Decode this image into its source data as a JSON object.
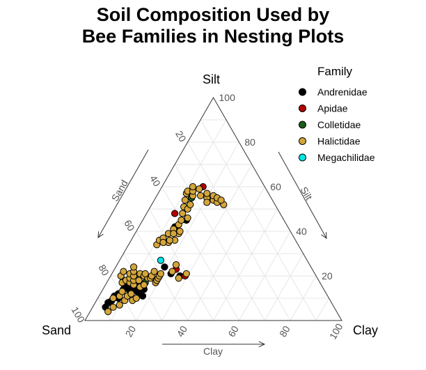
{
  "chart_data": {
    "type": "scatter",
    "subtype": "ternary",
    "title_lines": [
      "Soil Composition Used by",
      "Bee Families in Nesting Plots"
    ],
    "axes": {
      "corner_labels": {
        "left": "Sand",
        "top": "Silt",
        "right": "Clay"
      },
      "arrow_labels": {
        "left": "Sand",
        "right": "Silt",
        "bottom": "Clay"
      },
      "ticks": [
        "20",
        "40",
        "60",
        "80",
        "100"
      ],
      "range": [
        0,
        100
      ]
    },
    "legend": {
      "title": "Family",
      "position": "top-right",
      "entries": [
        {
          "name": "Andrenidae",
          "color": "#000000"
        },
        {
          "name": "Apidae",
          "color": "#b30000"
        },
        {
          "name": "Colletidae",
          "color": "#1a5c1a"
        },
        {
          "name": "Halictidae",
          "color": "#d4a63a"
        },
        {
          "name": "Megachilidae",
          "color": "#00e5e5"
        }
      ]
    },
    "grid": true,
    "series": [
      {
        "name": "Andrenidae",
        "color": "#000000",
        "points": [
          {
            "sand": 89,
            "silt": 6,
            "clay": 5
          },
          {
            "sand": 87,
            "silt": 8,
            "clay": 5
          },
          {
            "sand": 85,
            "silt": 9,
            "clay": 6
          },
          {
            "sand": 83,
            "silt": 11,
            "clay": 6
          },
          {
            "sand": 81,
            "silt": 12,
            "clay": 7
          },
          {
            "sand": 78,
            "silt": 14,
            "clay": 8
          },
          {
            "sand": 77,
            "silt": 15,
            "clay": 8
          },
          {
            "sand": 76,
            "silt": 14,
            "clay": 10
          },
          {
            "sand": 75,
            "silt": 16,
            "clay": 9
          },
          {
            "sand": 74,
            "silt": 14,
            "clay": 12
          },
          {
            "sand": 73,
            "silt": 13,
            "clay": 14
          },
          {
            "sand": 72,
            "silt": 15,
            "clay": 13
          },
          {
            "sand": 71,
            "silt": 17,
            "clay": 12
          },
          {
            "sand": 73,
            "silt": 12,
            "clay": 15
          },
          {
            "sand": 70,
            "silt": 14,
            "clay": 16
          },
          {
            "sand": 72,
            "silt": 11,
            "clay": 17
          },
          {
            "sand": 57,
            "silt": 24,
            "clay": 19
          },
          {
            "sand": 56,
            "silt": 21,
            "clay": 23
          },
          {
            "sand": 53,
            "silt": 20,
            "clay": 27
          },
          {
            "sand": 44,
            "silt": 42,
            "clay": 14
          },
          {
            "sand": 38,
            "silt": 45,
            "clay": 17
          },
          {
            "sand": 31,
            "silt": 55,
            "clay": 14
          },
          {
            "sand": 76,
            "silt": 18,
            "clay": 6
          },
          {
            "sand": 82,
            "silt": 10,
            "clay": 8
          }
        ]
      },
      {
        "name": "Apidae",
        "color": "#b30000",
        "points": [
          {
            "sand": 51,
            "silt": 20,
            "clay": 29
          },
          {
            "sand": 53,
            "silt": 23,
            "clay": 24
          },
          {
            "sand": 24,
            "silt": 60,
            "clay": 16
          },
          {
            "sand": 41,
            "silt": 48,
            "clay": 11
          },
          {
            "sand": 72,
            "silt": 20,
            "clay": 8
          }
        ]
      },
      {
        "name": "Colletidae",
        "color": "#1a5c1a",
        "points": [
          {
            "sand": 69,
            "silt": 20,
            "clay": 11
          },
          {
            "sand": 68,
            "silt": 17,
            "clay": 15
          },
          {
            "sand": 31,
            "silt": 55,
            "clay": 14
          }
        ]
      },
      {
        "name": "Halictidae",
        "color": "#d4a63a",
        "points": [
          {
            "sand": 89,
            "silt": 4,
            "clay": 7
          },
          {
            "sand": 86,
            "silt": 6,
            "clay": 8
          },
          {
            "sand": 84,
            "silt": 10,
            "clay": 6
          },
          {
            "sand": 83,
            "silt": 7,
            "clay": 10
          },
          {
            "sand": 81,
            "silt": 11,
            "clay": 8
          },
          {
            "sand": 80,
            "silt": 9,
            "clay": 11
          },
          {
            "sand": 79,
            "silt": 13,
            "clay": 8
          },
          {
            "sand": 78,
            "silt": 11,
            "clay": 11
          },
          {
            "sand": 77,
            "silt": 9,
            "clay": 14
          },
          {
            "sand": 77,
            "silt": 17,
            "clay": 6
          },
          {
            "sand": 76,
            "silt": 12,
            "clay": 12
          },
          {
            "sand": 76,
            "silt": 20,
            "clay": 4
          },
          {
            "sand": 75,
            "silt": 18,
            "clay": 7
          },
          {
            "sand": 75,
            "silt": 10,
            "clay": 15
          },
          {
            "sand": 74,
            "silt": 17,
            "clay": 9
          },
          {
            "sand": 74,
            "silt": 22,
            "clay": 4
          },
          {
            "sand": 73,
            "silt": 19,
            "clay": 8
          },
          {
            "sand": 73,
            "silt": 16,
            "clay": 11
          },
          {
            "sand": 72,
            "silt": 21,
            "clay": 7
          },
          {
            "sand": 72,
            "silt": 18,
            "clay": 10
          },
          {
            "sand": 71,
            "silt": 20,
            "clay": 9
          },
          {
            "sand": 71,
            "silt": 15,
            "clay": 14
          },
          {
            "sand": 70,
            "silt": 22,
            "clay": 8
          },
          {
            "sand": 70,
            "silt": 18,
            "clay": 12
          },
          {
            "sand": 69,
            "silt": 24,
            "clay": 7
          },
          {
            "sand": 69,
            "silt": 16,
            "clay": 15
          },
          {
            "sand": 68,
            "silt": 21,
            "clay": 11
          },
          {
            "sand": 67,
            "silt": 20,
            "clay": 13
          },
          {
            "sand": 66,
            "silt": 19,
            "clay": 15
          },
          {
            "sand": 66,
            "silt": 21,
            "clay": 13
          },
          {
            "sand": 65,
            "silt": 19,
            "clay": 16
          },
          {
            "sand": 64,
            "silt": 17,
            "clay": 19
          },
          {
            "sand": 64,
            "silt": 20,
            "clay": 16
          },
          {
            "sand": 63,
            "silt": 18,
            "clay": 19
          },
          {
            "sand": 62,
            "silt": 19,
            "clay": 19
          },
          {
            "sand": 62,
            "silt": 22,
            "clay": 16
          },
          {
            "sand": 61,
            "silt": 20,
            "clay": 19
          },
          {
            "sand": 60,
            "silt": 21,
            "clay": 19
          },
          {
            "sand": 55,
            "silt": 34,
            "clay": 11
          },
          {
            "sand": 53,
            "silt": 36,
            "clay": 11
          },
          {
            "sand": 51,
            "silt": 37,
            "clay": 12
          },
          {
            "sand": 50,
            "silt": 35,
            "clay": 15
          },
          {
            "sand": 48,
            "silt": 39,
            "clay": 13
          },
          {
            "sand": 47,
            "silt": 36,
            "clay": 17
          },
          {
            "sand": 45,
            "silt": 41,
            "clay": 14
          },
          {
            "sand": 44,
            "silt": 39,
            "clay": 17
          },
          {
            "sand": 42,
            "silt": 43,
            "clay": 15
          },
          {
            "sand": 40,
            "silt": 45,
            "clay": 15
          },
          {
            "sand": 38,
            "silt": 48,
            "clay": 14
          },
          {
            "sand": 36,
            "silt": 51,
            "clay": 13
          },
          {
            "sand": 35,
            "silt": 50,
            "clay": 15
          },
          {
            "sand": 34,
            "silt": 54,
            "clay": 12
          },
          {
            "sand": 32,
            "silt": 57,
            "clay": 11
          },
          {
            "sand": 31,
            "silt": 58,
            "clay": 11
          },
          {
            "sand": 30,
            "silt": 56,
            "clay": 14
          },
          {
            "sand": 29,
            "silt": 58,
            "clay": 13
          },
          {
            "sand": 28,
            "silt": 60,
            "clay": 12
          },
          {
            "sand": 27,
            "silt": 56,
            "clay": 17
          },
          {
            "sand": 26,
            "silt": 59,
            "clay": 15
          },
          {
            "sand": 25,
            "silt": 55,
            "clay": 20
          },
          {
            "sand": 24,
            "silt": 57,
            "clay": 19
          },
          {
            "sand": 23,
            "silt": 54,
            "clay": 23
          },
          {
            "sand": 22,
            "silt": 56,
            "clay": 22
          },
          {
            "sand": 22,
            "silt": 53,
            "clay": 25
          },
          {
            "sand": 21,
            "silt": 55,
            "clay": 24
          },
          {
            "sand": 20,
            "silt": 52,
            "clay": 28
          },
          {
            "sand": 20,
            "silt": 54,
            "clay": 26
          },
          {
            "sand": 26,
            "silt": 53,
            "clay": 21
          },
          {
            "sand": 33,
            "silt": 52,
            "clay": 15
          },
          {
            "sand": 37,
            "silt": 46,
            "clay": 17
          },
          {
            "sand": 43,
            "silt": 40,
            "clay": 17
          },
          {
            "sand": 46,
            "silt": 39,
            "clay": 15
          },
          {
            "sand": 49,
            "silt": 36,
            "clay": 15
          },
          {
            "sand": 52,
            "silt": 35,
            "clay": 13
          },
          {
            "sand": 55,
            "silt": 22,
            "clay": 23
          },
          {
            "sand": 52,
            "silt": 25,
            "clay": 23
          },
          {
            "sand": 54,
            "silt": 19,
            "clay": 27
          },
          {
            "sand": 50,
            "silt": 21,
            "clay": 29
          }
        ]
      },
      {
        "name": "Megachilidae",
        "color": "#00e5e5",
        "points": [
          {
            "sand": 57,
            "silt": 27,
            "clay": 16
          }
        ]
      }
    ]
  }
}
